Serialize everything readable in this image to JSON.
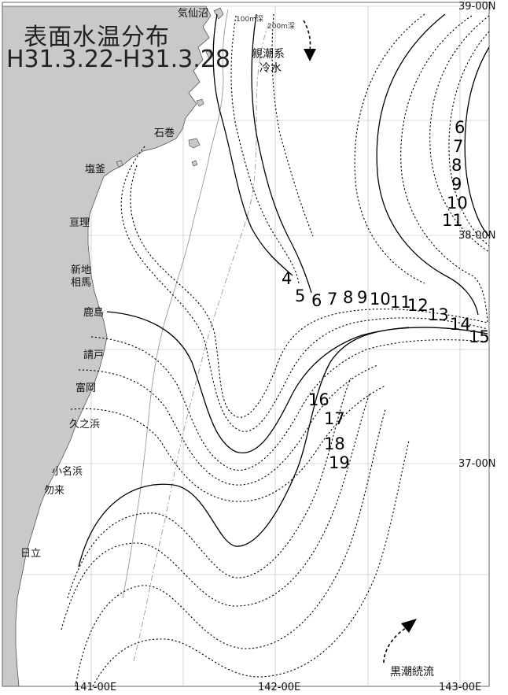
{
  "title": {
    "line1": "表面水温分布",
    "line2": "H31.3.22-H31.3.28"
  },
  "latitudes": [
    "39-00N",
    "38-00N",
    "37-00N"
  ],
  "longitudes": [
    "141-00E",
    "142-00E",
    "143-00E"
  ],
  "places": [
    "気仙沼",
    "石巻",
    "塩釜",
    "亘理",
    "新地",
    "相馬",
    "鹿島",
    "請戸",
    "富岡",
    "久之浜",
    "小名浜",
    "勿来",
    "日立"
  ],
  "depth_labels": [
    "100m深",
    "200m深"
  ],
  "current_labels": {
    "oyashio_1": "親潮系",
    "oyashio_2": "冷水",
    "kuroshio": "黒潮続流"
  },
  "isotherms": [
    "4",
    "5",
    "6",
    "7",
    "8",
    "9",
    "10",
    "11",
    "12",
    "13",
    "14",
    "15",
    "16",
    "17",
    "18",
    "19"
  ],
  "offshore_labels": [
    "6",
    "7",
    "8",
    "9",
    "10",
    "11"
  ],
  "colors": {
    "land": "#c8c8c8",
    "sea": "#ffffff",
    "contour": "#000000",
    "grid": "#b0b0b0"
  }
}
